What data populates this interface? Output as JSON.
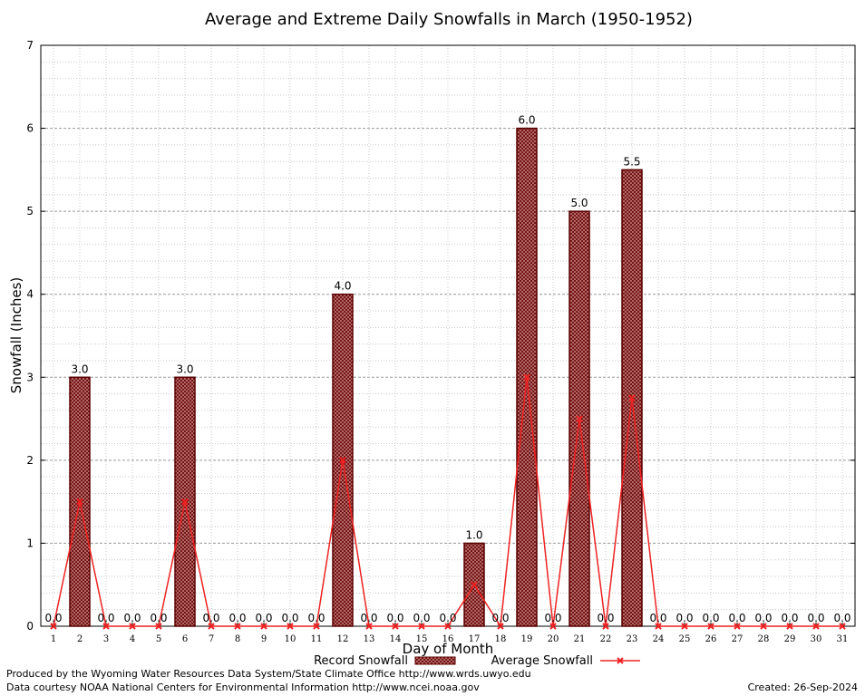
{
  "chart_data": {
    "type": "bar",
    "title": "Average and Extreme Daily Snowfalls in March (1950-1952)",
    "xlabel": "Day of Month",
    "ylabel": "Snowfall (Inches)",
    "ylim": [
      0,
      7
    ],
    "yticks": [
      0,
      1,
      2,
      3,
      4,
      5,
      6,
      7
    ],
    "grid": true,
    "legend_position": "bottom",
    "categories": [
      "1",
      "2",
      "3",
      "4",
      "5",
      "6",
      "7",
      "8",
      "9",
      "10",
      "11",
      "12",
      "13",
      "14",
      "15",
      "16",
      "17",
      "18",
      "19",
      "20",
      "21",
      "22",
      "23",
      "24",
      "25",
      "26",
      "27",
      "28",
      "29",
      "30",
      "31"
    ],
    "series": [
      {
        "name": "Record Snowfall",
        "kind": "bar",
        "values": [
          0,
          3,
          0,
          0,
          0,
          3,
          0,
          0,
          0,
          0,
          0,
          4,
          0,
          0,
          0,
          0,
          1,
          0,
          6,
          0,
          5,
          0,
          5.5,
          0,
          0,
          0,
          0,
          0,
          0,
          0,
          0
        ],
        "labels": [
          "0.0",
          "3.0",
          "0.0",
          "0.0",
          "0.0",
          "3.0",
          "0.0",
          "0.0",
          "0.0",
          "0.0",
          "0.0",
          "4.0",
          "0.0",
          "0.0",
          "0.0",
          "0.0",
          "1.0",
          "0.0",
          "6.0",
          "0.0",
          "5.0",
          "0.0",
          "5.5",
          "0.0",
          "0.0",
          "0.0",
          "0.0",
          "0.0",
          "0.0",
          "0.0",
          "0.0"
        ]
      },
      {
        "name": "Average Snowfall",
        "kind": "line",
        "values": [
          0,
          1.5,
          0,
          0,
          0,
          1.5,
          0,
          0,
          0,
          0,
          0,
          2.0,
          0,
          0,
          0,
          0,
          0.5,
          0,
          3.0,
          0,
          2.5,
          0,
          2.75,
          0,
          0,
          0,
          0,
          0,
          0,
          0,
          0
        ]
      }
    ],
    "colors": {
      "bar_fill": "#8b0000",
      "bar_hatch": "#d9a0a0",
      "bar_edge": "#8b0000",
      "line": "#ee2222",
      "grid": "#a0a0a0"
    }
  },
  "footer": {
    "credit1": "Produced by the Wyoming Water Resources Data System/State Climate Office http://www.wrds.uwyo.edu",
    "credit2": "Data courtesy NOAA National Centers for Environmental Information http://www.ncei.noaa.gov",
    "created": "Created:  26-Sep-2024"
  }
}
